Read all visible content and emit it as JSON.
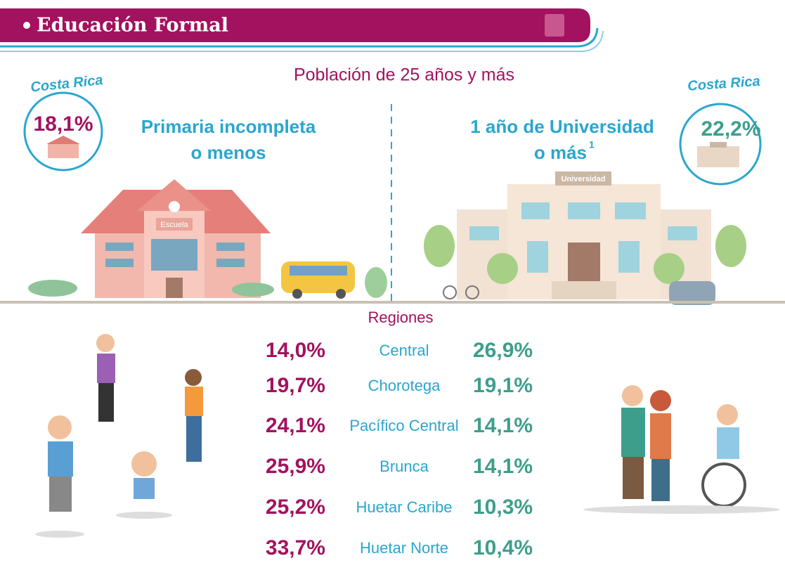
{
  "header": {
    "title": "Educación Formal"
  },
  "subtitle": "Población de 25 años y más",
  "left": {
    "badge": "Costa Rica",
    "value": "18,1%",
    "label_lines": [
      "Primaria incompleta",
      "o menos"
    ],
    "building": "Escuela"
  },
  "right": {
    "badge": "Costa Rica",
    "value": "22,2%",
    "label_lines": [
      "1 año de Universidad",
      "o más"
    ],
    "footnote": "1",
    "building": "Universidad"
  },
  "regions": {
    "title": "Regiones",
    "rows": [
      {
        "left": "14,0%",
        "name": "Central",
        "right": "26,9%"
      },
      {
        "left": "19,7%",
        "name": "Chorotega",
        "right": "19,1%"
      },
      {
        "left": "24,1%",
        "name": "Pacífico Central",
        "right": "14,1%"
      },
      {
        "left": "25,9%",
        "name": "Brunca",
        "right": "14,1%"
      },
      {
        "left": "25,2%",
        "name": "Huetar Caribe",
        "right": "10,3%"
      },
      {
        "left": "33,7%",
        "name": "Huetar Norte",
        "right": "10,4%"
      }
    ]
  }
}
